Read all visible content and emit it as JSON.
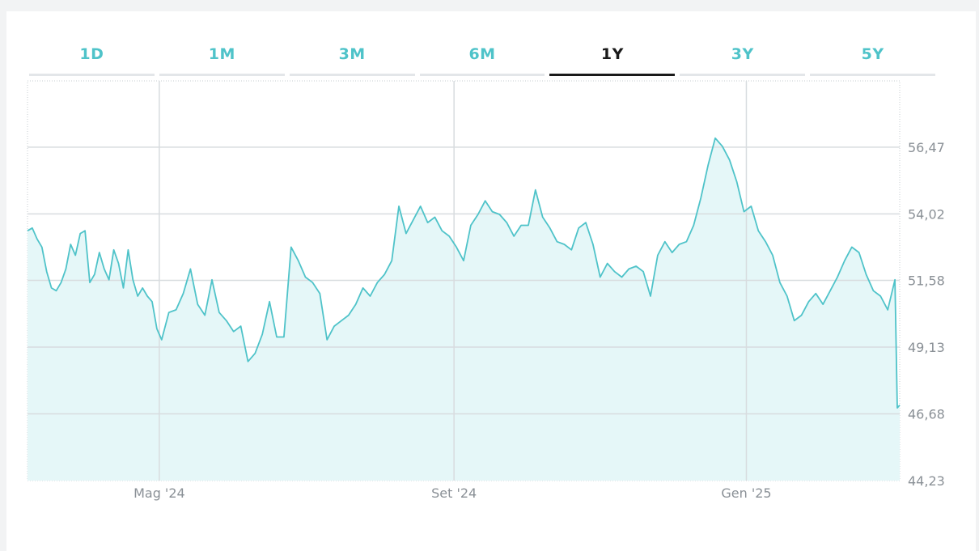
{
  "tabs": [
    {
      "label": "1D",
      "active": false
    },
    {
      "label": "1M",
      "active": false
    },
    {
      "label": "3M",
      "active": false
    },
    {
      "label": "6M",
      "active": false
    },
    {
      "label": "1Y",
      "active": true
    },
    {
      "label": "3Y",
      "active": false
    },
    {
      "label": "5Y",
      "active": false
    }
  ],
  "colors": {
    "line": "#4fc3c9",
    "fill": "#e5f7f8",
    "grid": "#d8dcdf",
    "active_tab": "#1a1a1a",
    "tab": "#4fc3c9"
  },
  "chart_data": {
    "type": "area",
    "title": "",
    "xlabel": "",
    "ylabel": "",
    "ylim": [
      44.23,
      58.9
    ],
    "yticks": [
      "56,47",
      "54,02",
      "51,58",
      "49,13",
      "46,68",
      "44,23"
    ],
    "ytick_values": [
      56.47,
      54.02,
      51.58,
      49.13,
      46.68,
      44.23
    ],
    "xticks": [
      "Mag '24",
      "Set '24",
      "Gen '25"
    ],
    "xtick_dates": [
      "2024-05-01",
      "2024-09-01",
      "2025-01-01"
    ],
    "grid": true,
    "legend": "none",
    "series": [
      {
        "x": [
          "2024-03-07",
          "2024-03-09",
          "2024-03-11",
          "2024-03-13",
          "2024-03-15",
          "2024-03-17",
          "2024-03-19",
          "2024-03-21",
          "2024-03-23",
          "2024-03-25",
          "2024-03-27",
          "2024-03-29",
          "2024-03-31",
          "2024-04-02",
          "2024-04-04",
          "2024-04-06",
          "2024-04-08",
          "2024-04-10",
          "2024-04-12",
          "2024-04-14",
          "2024-04-16",
          "2024-04-18",
          "2024-04-20",
          "2024-04-22",
          "2024-04-24",
          "2024-04-26",
          "2024-04-28",
          "2024-04-30",
          "2024-05-02",
          "2024-05-05",
          "2024-05-08",
          "2024-05-11",
          "2024-05-14",
          "2024-05-17",
          "2024-05-20",
          "2024-05-23",
          "2024-05-26",
          "2024-05-29",
          "2024-06-01",
          "2024-06-04",
          "2024-06-07",
          "2024-06-10",
          "2024-06-13",
          "2024-06-16",
          "2024-06-19",
          "2024-06-22",
          "2024-06-25",
          "2024-06-28",
          "2024-07-01",
          "2024-07-04",
          "2024-07-07",
          "2024-07-10",
          "2024-07-13",
          "2024-07-16",
          "2024-07-19",
          "2024-07-22",
          "2024-07-25",
          "2024-07-28",
          "2024-07-31",
          "2024-08-03",
          "2024-08-06",
          "2024-08-09",
          "2024-08-12",
          "2024-08-15",
          "2024-08-18",
          "2024-08-21",
          "2024-08-24",
          "2024-08-27",
          "2024-08-30",
          "2024-09-02",
          "2024-09-05",
          "2024-09-08",
          "2024-09-11",
          "2024-09-14",
          "2024-09-17",
          "2024-09-20",
          "2024-09-23",
          "2024-09-26",
          "2024-09-29",
          "2024-10-02",
          "2024-10-05",
          "2024-10-08",
          "2024-10-11",
          "2024-10-14",
          "2024-10-17",
          "2024-10-20",
          "2024-10-23",
          "2024-10-26",
          "2024-10-29",
          "2024-11-01",
          "2024-11-04",
          "2024-11-07",
          "2024-11-10",
          "2024-11-13",
          "2024-11-16",
          "2024-11-19",
          "2024-11-22",
          "2024-11-25",
          "2024-11-28",
          "2024-12-01",
          "2024-12-04",
          "2024-12-07",
          "2024-12-10",
          "2024-12-13",
          "2024-12-16",
          "2024-12-19",
          "2024-12-22",
          "2024-12-25",
          "2024-12-28",
          "2024-12-31",
          "2025-01-03",
          "2025-01-06",
          "2025-01-09",
          "2025-01-12",
          "2025-01-15",
          "2025-01-18",
          "2025-01-21",
          "2025-01-24",
          "2025-01-27",
          "2025-01-30",
          "2025-02-02",
          "2025-02-05",
          "2025-02-08",
          "2025-02-11",
          "2025-02-14",
          "2025-02-17",
          "2025-02-20",
          "2025-02-23",
          "2025-02-26",
          "2025-03-01",
          "2025-03-04",
          "2025-03-05",
          "2025-03-06"
        ],
        "y": [
          53.4,
          53.5,
          53.1,
          52.8,
          51.9,
          51.3,
          51.2,
          51.5,
          52.0,
          52.9,
          52.5,
          53.3,
          53.4,
          51.5,
          51.8,
          52.6,
          52.0,
          51.6,
          52.7,
          52.2,
          51.3,
          52.7,
          51.6,
          51.0,
          51.3,
          51.0,
          50.8,
          49.8,
          49.4,
          50.4,
          50.5,
          51.1,
          52.0,
          50.7,
          50.3,
          51.6,
          50.4,
          50.1,
          49.7,
          49.9,
          48.6,
          48.9,
          49.6,
          50.8,
          49.5,
          49.5,
          52.8,
          52.3,
          51.7,
          51.5,
          51.1,
          49.4,
          49.9,
          50.1,
          50.3,
          50.7,
          51.3,
          51.0,
          51.5,
          51.8,
          52.3,
          54.3,
          53.3,
          53.8,
          54.3,
          53.7,
          53.9,
          53.4,
          53.2,
          52.8,
          52.3,
          53.6,
          54.0,
          54.5,
          54.1,
          54.0,
          53.7,
          53.2,
          53.6,
          53.6,
          54.9,
          53.9,
          53.5,
          53.0,
          52.9,
          52.7,
          53.5,
          53.7,
          52.9,
          51.7,
          52.2,
          51.9,
          51.7,
          52.0,
          52.1,
          51.9,
          51.0,
          52.5,
          53.0,
          52.6,
          52.9,
          53.0,
          53.6,
          54.6,
          55.8,
          56.8,
          56.5,
          56.0,
          55.2,
          54.1,
          54.3,
          53.4,
          53.0,
          52.5,
          51.5,
          51.0,
          50.1,
          50.3,
          50.8,
          51.1,
          50.7,
          51.2,
          51.7,
          52.3,
          52.8,
          52.6,
          51.8,
          51.2,
          51.0,
          50.5,
          51.6,
          46.9,
          47.0
        ]
      }
    ]
  }
}
